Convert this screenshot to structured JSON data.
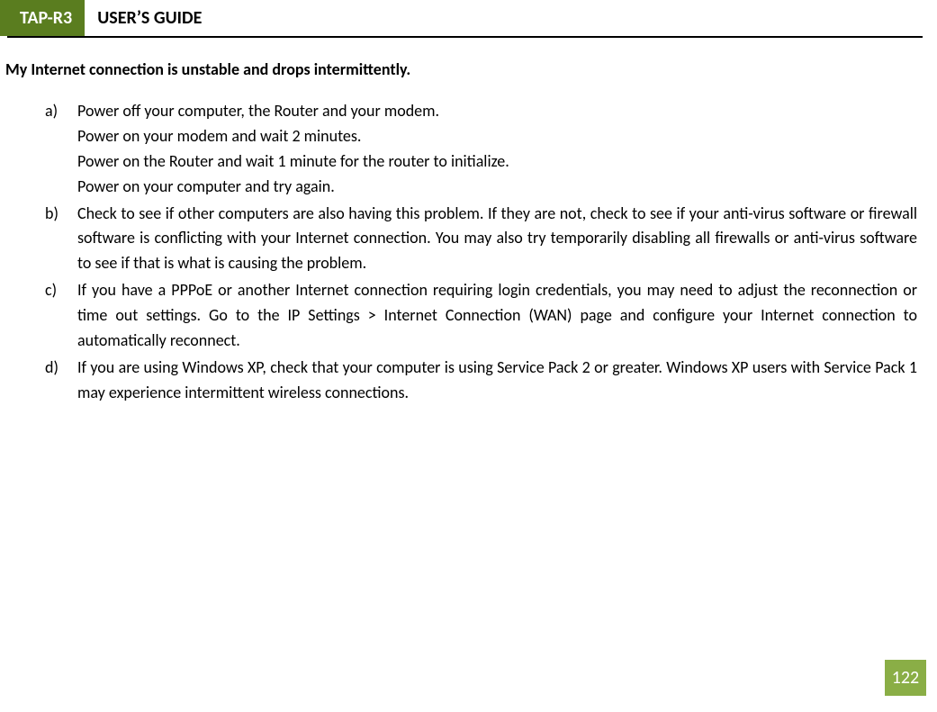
{
  "header": {
    "badge": "TAP-R3",
    "title": "USER’S GUIDE",
    "badge_bg": "#5a7d1f",
    "badge_fg": "#ffffff",
    "rule_color": "#000000"
  },
  "section": {
    "title": "My Internet connection is unstable and drops intermittently."
  },
  "list": {
    "items": [
      {
        "marker": "a)",
        "text": "Power off your computer, the Router and your modem.\nPower on your modem and wait 2 minutes.\nPower on the Router and wait 1 minute for the router to initialize.\nPower on your computer and try again."
      },
      {
        "marker": "b)",
        "text": "Check to see if other computers are also having this problem. If they are not, check to see if your anti-virus software or firewall software is conflicting with your Internet connection. You may also try temporarily disabling all firewalls or anti-virus software to see if that is what is causing the problem."
      },
      {
        "marker": "c)",
        "text": "If you have a PPPoE or another Internet connection requiring login credentials, you may need to adjust the reconnection or time out settings. Go to the IP Settings > Internet Connection (WAN) page and configure your Internet connection to automatically reconnect."
      },
      {
        "marker": "d)",
        "text": "If you are using Windows XP, check that your computer is using Service Pack 2 or greater. Windows XP users with Service Pack 1 may experience intermittent wireless connections."
      }
    ]
  },
  "page": {
    "number": "122",
    "badge_bg": "#8aae46",
    "badge_fg": "#ffffff"
  },
  "typography": {
    "body_fontsize": 18,
    "title_fontsize": 18,
    "header_fontsize": 20,
    "font_family": "Calibri"
  }
}
